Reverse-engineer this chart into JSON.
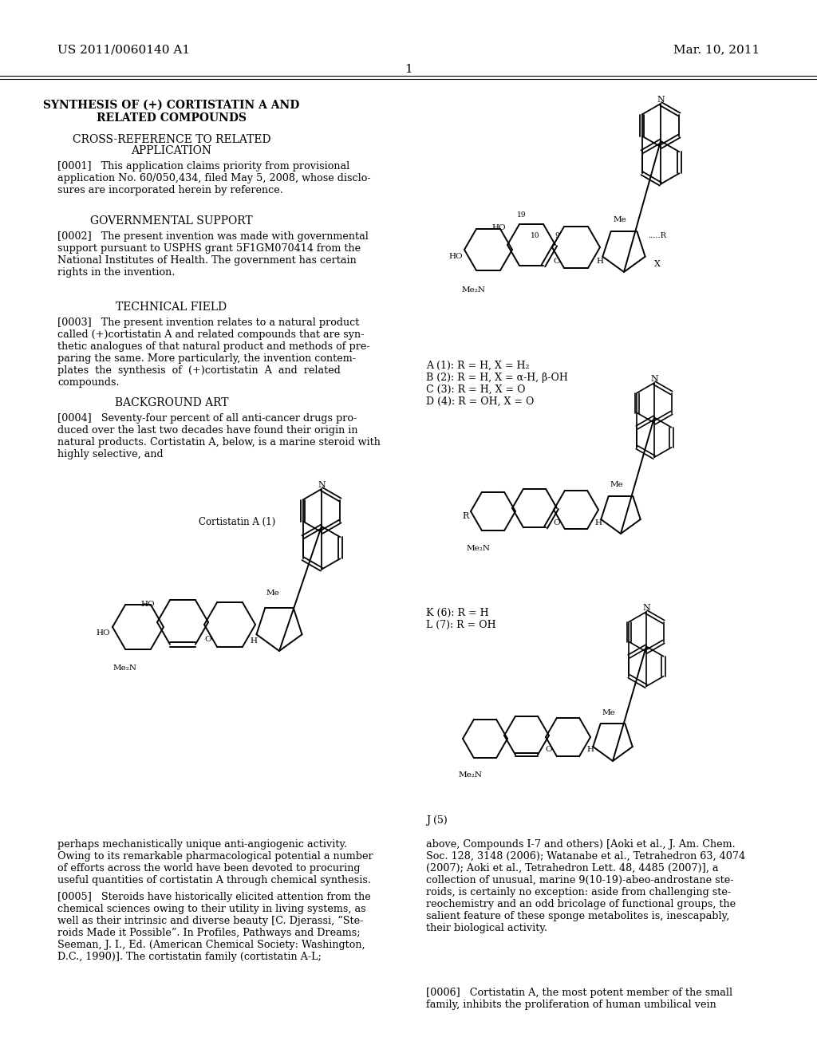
{
  "background_color": "#ffffff",
  "header_left": "US 2011/0060140 A1",
  "header_right": "Mar. 10, 2011",
  "page_number": "1",
  "title_line1": "SYNTHESIS OF (+) CORTISTATIN A AND",
  "title_line2": "RELATED COMPOUNDS",
  "section1_title": "CROSS-REFERENCE TO RELATED\nAPPLICATION",
  "para0001": "[0001]   This application claims priority from provisional\napplication No. 60/050,434, filed May 5, 2008, whose disclo-\nsures are incorporated herein by reference.",
  "section2_title": "GOVERNMENTAL SUPPORT",
  "para0002": "[0002]   The present invention was made with governmental\nsupport pursuant to USPHS grant 5F1GM070414 from the\nNational Institutes of Health. The government has certain\nrights in the invention.",
  "section3_title": "TECHNICAL FIELD",
  "para0003": "[0003]   The present invention relates to a natural product\ncalled (+)cortistatin A and related compounds that are syn-\nthetic analogues of that natural product and methods of pre-\nparing the same. More particularly, the invention contem-\nplates  the  synthesis  of  (+)cortistatin  A  and  related\ncompounds.",
  "section4_title": "BACKGROUND ART",
  "para0004": "[0004]   Seventy-four percent of all anti-cancer drugs pro-\nduced over the last two decades have found their origin in\nnatural products. Cortistatin A, below, is a marine steroid with\nhighly selective, and",
  "cortistatin_label": "Cortistatin A (1)",
  "bottom_left_para": "perhaps mechanistically unique anti-angiogenic activity.\nOwing to its remarkable pharmacological potential a number\nof efforts across the world have been devoted to procuring\nuseful quantities of cortistatin A through chemical synthesis.",
  "para0005": "[0005]   Steroids have historically elicited attention from the\nchemical sciences owing to their utility in living systems, as\nwell as their intrinsic and diverse beauty [C. Djerassi, “Ste-\nroids Made it Possible”. In Profiles, Pathways and Dreams;\nSeeman, J. I., Ed. (American Chemical Society: Washington,\nD.C., 1990)]. The cortistatin family (cortistatin A-L;",
  "right_col_para": "above, Compounds I-7 and others) [Aoki et al., J. Am. Chem.\nSoc. 128, 3148 (2006); Watanabe et al., Tetrahedron 63, 4074\n(2007); Aoki et al., Tetrahedron Lett. 48, 4485 (2007)], a\ncollection of unusual, marine 9(10-19)-abeo-androstane ste-\nroids, is certainly no exception: aside from challenging ste-\nreochemistry and an odd bricolage of functional groups, the\nsalient feature of these sponge metabolites is, inescapably,\ntheir biological activity.",
  "para0006": "[0006]   Cortistatin A, the most potent member of the small\nfamily, inhibits the proliferation of human umbilical vein",
  "compound_labels_top": "A (1): R = H, X = H₂\nB (2): R = H, X = α-H, β-OH\nC (3): R = H, X = O\nD (4): R = OH, X = O",
  "compound_labels_mid": "K (6): R = H\nL (7): R = OH",
  "compound_label_bottom": "J (5)"
}
